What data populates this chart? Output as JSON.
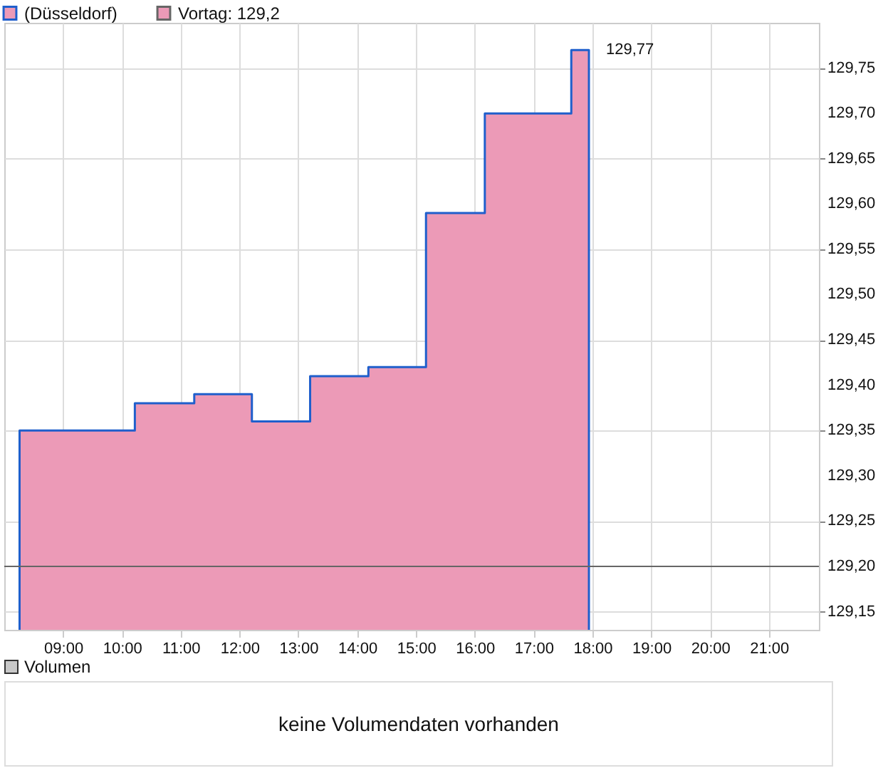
{
  "chart_data": [
    {
      "type": "area",
      "x": [
        8.26,
        10.22,
        11.23,
        12.21,
        13.2,
        14.19,
        15.17,
        16.17,
        17.64,
        17.94
      ],
      "series": [
        {
          "name": "(Düsseldorf)",
          "color": "#1f5fcc",
          "values": [
            129.35,
            129.38,
            129.39,
            129.36,
            129.41,
            129.42,
            129.59,
            129.7,
            129.77,
            129.77
          ]
        }
      ],
      "xlim": [
        8,
        21.85
      ],
      "xticks": [
        {
          "value": 9,
          "label": "09:00"
        },
        {
          "value": 10,
          "label": "10:00"
        },
        {
          "value": 11,
          "label": "11:00"
        },
        {
          "value": 12,
          "label": "12:00"
        },
        {
          "value": 13,
          "label": "13:00"
        },
        {
          "value": 14,
          "label": "14:00"
        },
        {
          "value": 15,
          "label": "15:00"
        },
        {
          "value": 16,
          "label": "16:00"
        },
        {
          "value": 17,
          "label": "17:00"
        },
        {
          "value": 18,
          "label": "18:00"
        },
        {
          "value": 19,
          "label": "19:00"
        },
        {
          "value": 20,
          "label": "20:00"
        },
        {
          "value": 21,
          "label": "21:00"
        }
      ],
      "ylim": [
        129.13,
        129.8
      ],
      "yticks": [
        {
          "value": 129.15,
          "label": "129,15"
        },
        {
          "value": 129.2,
          "label": "129,20"
        },
        {
          "value": 129.25,
          "label": "129,25"
        },
        {
          "value": 129.3,
          "label": "129,30"
        },
        {
          "value": 129.35,
          "label": "129,35"
        },
        {
          "value": 129.4,
          "label": "129,40"
        },
        {
          "value": 129.45,
          "label": "129,45"
        },
        {
          "value": 129.5,
          "label": "129,50"
        },
        {
          "value": 129.55,
          "label": "129,55"
        },
        {
          "value": 129.6,
          "label": "129,60"
        },
        {
          "value": 129.65,
          "label": "129,65"
        },
        {
          "value": 129.7,
          "label": "129,70"
        },
        {
          "value": 129.75,
          "label": "129,75"
        }
      ],
      "ref_lines": [
        {
          "axis": "y",
          "value": 129.2,
          "label": "Vortag: 129,2",
          "color": "#666666"
        }
      ],
      "annotations": [
        {
          "text": "129,77",
          "x": 17.94,
          "y": 129.77
        }
      ],
      "grid": true,
      "legend": "top left"
    },
    {
      "type": "other",
      "title": "Volumen",
      "annotations": [
        "keine Volumendaten vorhanden"
      ]
    }
  ]
}
